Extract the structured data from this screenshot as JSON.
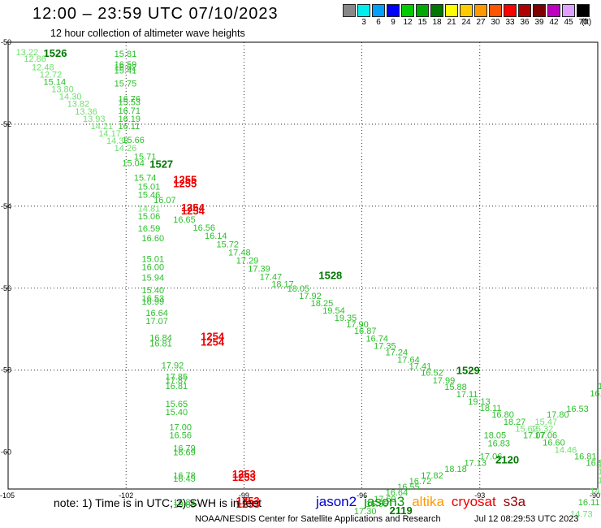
{
  "title": "12:00  –  23:59 UTC 07/10/2023",
  "subtitle": "12 hour collection of altimeter wave heights",
  "legend": {
    "unit": "(ft)",
    "colors": [
      "#888888",
      "#00eeee",
      "#00a0ff",
      "#0000ff",
      "#00cc00",
      "#00aa00",
      "#007700",
      "#ffff00",
      "#ffcc00",
      "#ff9900",
      "#ff5500",
      "#ff0000",
      "#b00000",
      "#800000",
      "#c000c0",
      "#e0a0ff",
      "#000000"
    ],
    "labels": [
      "",
      "3",
      "6",
      "9",
      "12",
      "15",
      "18",
      "21",
      "24",
      "27",
      "30",
      "33",
      "36",
      "39",
      "42",
      "45",
      "70"
    ]
  },
  "axes": {
    "x_ticks": [
      "-105",
      "-102",
      "-99",
      "-96",
      "-93",
      "-90"
    ],
    "y_ticks": [
      "-50",
      "-52",
      "-54",
      "-56",
      "-58",
      "-60"
    ]
  },
  "note": "note:  1) Time is in UTC; 2) SWH is in feet",
  "satellites": [
    {
      "name": "jason2",
      "color": "#0000cc"
    },
    {
      "name": "jason3",
      "color": "#009900"
    },
    {
      "name": "altika",
      "color": "#ff9900"
    },
    {
      "name": "cryosat",
      "color": "#ee0000"
    },
    {
      "name": "s3a",
      "color": "#990000"
    }
  ],
  "credit": "NOAA/NESDIS Center for Satellite Applications and Research",
  "created": "Jul 12 08:29:53 UTC 2023",
  "observations": [
    {
      "text": "13.22",
      "color": "#6fe06f",
      "lon": -104.8,
      "lat": -50.24
    },
    {
      "text": "1526",
      "color": "#007700",
      "lon": -104.1,
      "lat": -50.28,
      "bold": true
    },
    {
      "text": "12.86",
      "color": "#6fe06f",
      "lon": -104.6,
      "lat": -50.4
    },
    {
      "text": "12.48",
      "color": "#6fe06f",
      "lon": -104.4,
      "lat": -50.6
    },
    {
      "text": "12.72",
      "color": "#6fe06f",
      "lon": -104.2,
      "lat": -50.78
    },
    {
      "text": "15.14",
      "color": "#2bbf2b",
      "lon": -104.1,
      "lat": -50.96
    },
    {
      "text": "13.80",
      "color": "#6fe06f",
      "lon": -103.9,
      "lat": -51.14
    },
    {
      "text": "14.30",
      "color": "#6fe06f",
      "lon": -103.7,
      "lat": -51.32
    },
    {
      "text": "13.82",
      "color": "#6fe06f",
      "lon": -103.5,
      "lat": -51.5
    },
    {
      "text": "13.36",
      "color": "#6fe06f",
      "lon": -103.3,
      "lat": -51.68
    },
    {
      "text": "13.93",
      "color": "#6fe06f",
      "lon": -103.1,
      "lat": -51.86
    },
    {
      "text": "14.21",
      "color": "#6fe06f",
      "lon": -102.9,
      "lat": -52.04
    },
    {
      "text": "14.17",
      "color": "#6fe06f",
      "lon": -102.7,
      "lat": -52.22
    },
    {
      "text": "14.39",
      "color": "#6fe06f",
      "lon": -102.5,
      "lat": -52.4
    },
    {
      "text": "14.26",
      "color": "#6fe06f",
      "lon": -102.3,
      "lat": -52.58
    },
    {
      "text": "15.04",
      "color": "#2bbf2b",
      "lon": -102.1,
      "lat": -52.94
    },
    {
      "text": "1527",
      "color": "#007700",
      "lon": -101.4,
      "lat": -52.98,
      "bold": true
    },
    {
      "text": "15.74",
      "color": "#2bbf2b",
      "lon": -101.8,
      "lat": -53.3
    },
    {
      "text": "1255",
      "color": "#ee0000",
      "lon": -100.8,
      "lat": -53.36,
      "bold": true
    },
    {
      "text": "1255",
      "color": "#ee0000",
      "lon": -100.8,
      "lat": -53.46,
      "bold": true
    },
    {
      "text": "15.01",
      "color": "#2bbf2b",
      "lon": -101.7,
      "lat": -53.52
    },
    {
      "text": "15.46",
      "color": "#2bbf2b",
      "lon": -101.7,
      "lat": -53.72
    },
    {
      "text": "16.07",
      "color": "#2bbf2b",
      "lon": -101.3,
      "lat": -53.84
    },
    {
      "text": "14.81",
      "color": "#6fe06f",
      "lon": -101.7,
      "lat": -54.05
    },
    {
      "text": "1254",
      "color": "#ee0000",
      "lon": -100.6,
      "lat": -54.04,
      "bold": true
    },
    {
      "text": "1254",
      "color": "#ee0000",
      "lon": -100.6,
      "lat": -54.12,
      "bold": true
    },
    {
      "text": "15.06",
      "color": "#2bbf2b",
      "lon": -101.7,
      "lat": -54.24
    },
    {
      "text": "16.65",
      "color": "#2bbf2b",
      "lon": -100.8,
      "lat": -54.32
    },
    {
      "text": "16.59",
      "color": "#2bbf2b",
      "lon": -101.7,
      "lat": -54.54
    },
    {
      "text": "16.56",
      "color": "#2bbf2b",
      "lon": -100.3,
      "lat": -54.52
    },
    {
      "text": "16.60",
      "color": "#2bbf2b",
      "lon": -101.6,
      "lat": -54.78
    },
    {
      "text": "16.14",
      "color": "#2bbf2b",
      "lon": -100.0,
      "lat": -54.72
    },
    {
      "text": "15.72",
      "color": "#2bbf2b",
      "lon": -99.7,
      "lat": -54.92
    },
    {
      "text": "17.48",
      "color": "#2bbf2b",
      "lon": -99.4,
      "lat": -55.12
    },
    {
      "text": "15.01",
      "color": "#2bbf2b",
      "lon": -101.6,
      "lat": -55.28
    },
    {
      "text": "17.29",
      "color": "#2bbf2b",
      "lon": -99.2,
      "lat": -55.32
    },
    {
      "text": "16.00",
      "color": "#2bbf2b",
      "lon": -101.6,
      "lat": -55.48
    },
    {
      "text": "17.39",
      "color": "#2bbf2b",
      "lon": -98.9,
      "lat": -55.52
    },
    {
      "text": "1528",
      "color": "#007700",
      "lon": -97.1,
      "lat": -55.7,
      "bold": true
    },
    {
      "text": "17.47",
      "color": "#2bbf2b",
      "lon": -98.6,
      "lat": -55.72
    },
    {
      "text": "15.94",
      "color": "#2bbf2b",
      "lon": -101.6,
      "lat": -55.74
    },
    {
      "text": "18.17",
      "color": "#2bbf2b",
      "lon": -98.3,
      "lat": -55.9
    },
    {
      "text": "15.40",
      "color": "#2bbf2b",
      "lon": -101.6,
      "lat": -56.04
    },
    {
      "text": "18.05",
      "color": "#2bbf2b",
      "lon": -97.9,
      "lat": -56.0
    },
    {
      "text": "16.53",
      "color": "#2bbf2b",
      "lon": -101.6,
      "lat": -56.24
    },
    {
      "text": "17.92",
      "color": "#2bbf2b",
      "lon": -97.6,
      "lat": -56.18
    },
    {
      "text": "16.99",
      "color": "#2bbf2b",
      "lon": -101.6,
      "lat": -56.32
    },
    {
      "text": "18.25",
      "color": "#2bbf2b",
      "lon": -97.3,
      "lat": -56.36
    },
    {
      "text": "19.54",
      "color": "#2bbf2b",
      "lon": -97.0,
      "lat": -56.54
    },
    {
      "text": "16.64",
      "color": "#2bbf2b",
      "lon": -101.5,
      "lat": -56.6
    },
    {
      "text": "19.35",
      "color": "#2bbf2b",
      "lon": -96.7,
      "lat": -56.72
    },
    {
      "text": "17.07",
      "color": "#2bbf2b",
      "lon": -101.5,
      "lat": -56.8
    },
    {
      "text": "17.90",
      "color": "#2bbf2b",
      "lon": -96.4,
      "lat": -56.88
    },
    {
      "text": "16.87",
      "color": "#2bbf2b",
      "lon": -96.2,
      "lat": -57.04
    },
    {
      "text": "16.84",
      "color": "#2bbf2b",
      "lon": -101.4,
      "lat": -57.2
    },
    {
      "text": "1254",
      "color": "#ee0000",
      "lon": -100.1,
      "lat": -57.18,
      "bold": true
    },
    {
      "text": "16.74",
      "color": "#2bbf2b",
      "lon": -95.9,
      "lat": -57.22
    },
    {
      "text": "16.81",
      "color": "#2bbf2b",
      "lon": -101.4,
      "lat": -57.34
    },
    {
      "text": "1254",
      "color": "#ee0000",
      "lon": -100.1,
      "lat": -57.32,
      "bold": true
    },
    {
      "text": "17.35",
      "color": "#2bbf2b",
      "lon": -95.7,
      "lat": -57.4
    },
    {
      "text": "17.24",
      "color": "#2bbf2b",
      "lon": -95.4,
      "lat": -57.56
    },
    {
      "text": "17.64",
      "color": "#2bbf2b",
      "lon": -95.1,
      "lat": -57.74
    },
    {
      "text": "17.92",
      "color": "#2bbf2b",
      "lon": -101.1,
      "lat": -57.88
    },
    {
      "text": "17.41",
      "color": "#2bbf2b",
      "lon": -94.8,
      "lat": -57.9
    },
    {
      "text": "1529",
      "color": "#007700",
      "lon": -93.6,
      "lat": -58.02,
      "bold": true
    },
    {
      "text": "16.52",
      "color": "#2bbf2b",
      "lon": -94.5,
      "lat": -58.06
    },
    {
      "text": "17.85",
      "color": "#2bbf2b",
      "lon": -101.0,
      "lat": -58.16
    },
    {
      "text": "17.99",
      "color": "#2bbf2b",
      "lon": -94.2,
      "lat": -58.24
    },
    {
      "text": "17.87",
      "color": "#2bbf2b",
      "lon": -101.0,
      "lat": -58.24
    },
    {
      "text": "16.81",
      "color": "#2bbf2b",
      "lon": -101.0,
      "lat": -58.38
    },
    {
      "text": "15.88",
      "color": "#2bbf2b",
      "lon": -93.9,
      "lat": -58.4
    },
    {
      "text": "17.11",
      "color": "#2bbf2b",
      "lon": -93.6,
      "lat": -58.58
    },
    {
      "text": "17.",
      "color": "#2bbf2b",
      "lon": -90.0,
      "lat": -58.38
    },
    {
      "text": "16.73",
      "color": "#2bbf2b",
      "lon": -90.2,
      "lat": -58.56
    },
    {
      "text": "19.13",
      "color": "#2bbf2b",
      "lon": -93.3,
      "lat": -58.76
    },
    {
      "text": "15.65",
      "color": "#2bbf2b",
      "lon": -101.0,
      "lat": -58.82
    },
    {
      "text": "18.11",
      "color": "#2bbf2b",
      "lon": -93.0,
      "lat": -58.92
    },
    {
      "text": "16.53",
      "color": "#2bbf2b",
      "lon": -90.8,
      "lat": -58.94
    },
    {
      "text": "15.40",
      "color": "#2bbf2b",
      "lon": -101.0,
      "lat": -59.02
    },
    {
      "text": "16.80",
      "color": "#2bbf2b",
      "lon": -92.7,
      "lat": -59.08
    },
    {
      "text": "17.80",
      "color": "#2bbf2b",
      "lon": -91.3,
      "lat": -59.08
    },
    {
      "text": "18.27",
      "color": "#2bbf2b",
      "lon": -92.4,
      "lat": -59.26
    },
    {
      "text": "15.47",
      "color": "#6fe06f",
      "lon": -91.6,
      "lat": -59.26
    },
    {
      "text": "17.00",
      "color": "#2bbf2b",
      "lon": -100.9,
      "lat": -59.38
    },
    {
      "text": "15.62",
      "color": "#6fe06f",
      "lon": -92.1,
      "lat": -59.42
    },
    {
      "text": "16.32",
      "color": "#6fe06f",
      "lon": -91.7,
      "lat": -59.42
    },
    {
      "text": "18.05",
      "color": "#2bbf2b",
      "lon": -92.9,
      "lat": -59.58
    },
    {
      "text": "17.07",
      "color": "#2bbf2b",
      "lon": -91.9,
      "lat": -59.58
    },
    {
      "text": "17.06",
      "color": "#2bbf2b",
      "lon": -91.6,
      "lat": -59.58
    },
    {
      "text": "16.56",
      "color": "#2bbf2b",
      "lon": -100.9,
      "lat": -59.58
    },
    {
      "text": "16.60",
      "color": "#2bbf2b",
      "lon": -91.4,
      "lat": -59.76
    },
    {
      "text": "16.83",
      "color": "#2bbf2b",
      "lon": -92.8,
      "lat": -59.78
    },
    {
      "text": "16.79",
      "color": "#2bbf2b",
      "lon": -100.8,
      "lat": -59.9
    },
    {
      "text": "14.46",
      "color": "#6fe06f",
      "lon": -91.1,
      "lat": -59.94
    },
    {
      "text": "16.69",
      "color": "#2bbf2b",
      "lon": -100.8,
      "lat": -60.0
    },
    {
      "text": "17.06",
      "color": "#2bbf2b",
      "lon": -93.0,
      "lat": -60.1
    },
    {
      "text": "16.81",
      "color": "#2bbf2b",
      "lon": -90.6,
      "lat": -60.1
    },
    {
      "text": "2120",
      "color": "#007700",
      "lon": -92.6,
      "lat": -60.2,
      "bold": true
    },
    {
      "text": "17.13",
      "color": "#2bbf2b",
      "lon": -93.4,
      "lat": -60.26
    },
    {
      "text": "16.57",
      "color": "#2bbf2b",
      "lon": -90.3,
      "lat": -60.26
    },
    {
      "text": "18.18",
      "color": "#2bbf2b",
      "lon": -93.9,
      "lat": -60.4
    },
    {
      "text": "1",
      "color": "#6fe06f",
      "lon": -90.0,
      "lat": -60.3
    },
    {
      "text": "14.",
      "color": "#6fe06f",
      "lon": -90.0,
      "lat": -60.46
    },
    {
      "text": "17.82",
      "color": "#2bbf2b",
      "lon": -94.5,
      "lat": -60.56
    },
    {
      "text": "16.78",
      "color": "#2bbf2b",
      "lon": -100.8,
      "lat": -60.56
    },
    {
      "text": "1253",
      "color": "#ee0000",
      "lon": -99.3,
      "lat": -60.54,
      "bold": true
    },
    {
      "text": "16.72",
      "color": "#2bbf2b",
      "lon": -94.8,
      "lat": -60.7
    },
    {
      "text": "16.45",
      "color": "#2bbf2b",
      "lon": -100.8,
      "lat": -60.64
    },
    {
      "text": "1253",
      "color": "#ee0000",
      "lon": -99.3,
      "lat": -60.62,
      "bold": true
    },
    {
      "text": "13.8",
      "color": "#6fe06f",
      "lon": -90.0,
      "lat": -60.68
    },
    {
      "text": "16.55",
      "color": "#2bbf2b",
      "lon": -95.1,
      "lat": -60.84
    },
    {
      "text": "14.27",
      "color": "#6fe06f",
      "lon": -90.2,
      "lat": -60.94
    },
    {
      "text": "16.64",
      "color": "#2bbf2b",
      "lon": -95.4,
      "lat": -60.98
    },
    {
      "text": "17.69",
      "color": "#2bbf2b",
      "lon": -95.7,
      "lat": -61.14
    },
    {
      "text": "16.81",
      "color": "#2bbf2b",
      "lon": -100.8,
      "lat": -61.22
    },
    {
      "text": "1253",
      "color": "#ee0000",
      "lon": -99.2,
      "lat": -61.2,
      "bold": true
    },
    {
      "text": "16.11",
      "color": "#2bbf2b",
      "lon": -90.5,
      "lat": -61.22
    },
    {
      "text": "16.55",
      "color": "#2bbf2b",
      "lon": -95.9,
      "lat": -61.26
    },
    {
      "text": "16.85",
      "color": "#2bbf2b",
      "lon": -100.8,
      "lat": -61.28
    },
    {
      "text": "1253",
      "color": "#ee0000",
      "lon": -99.2,
      "lat": -61.28,
      "bold": true
    },
    {
      "text": "17.30",
      "color": "#2bbf2b",
      "lon": -96.2,
      "lat": -61.44
    },
    {
      "text": "2119",
      "color": "#007700",
      "lon": -95.3,
      "lat": -61.44,
      "bold": true
    },
    {
      "text": "14.73",
      "color": "#6fe06f",
      "lon": -90.7,
      "lat": -61.5
    },
    {
      "text": "15.81",
      "color": "#2bbf2b",
      "lon": -102.3,
      "lat": -50.28
    },
    {
      "text": "16.59",
      "color": "#2bbf2b",
      "lon": -102.3,
      "lat": -50.54
    },
    {
      "text": "16.62",
      "color": "#2bbf2b",
      "lon": -102.3,
      "lat": -50.6
    },
    {
      "text": "15.41",
      "color": "#2bbf2b",
      "lon": -102.3,
      "lat": -50.68
    },
    {
      "text": "15.75",
      "color": "#2bbf2b",
      "lon": -102.3,
      "lat": -51.0
    },
    {
      "text": "16.76",
      "color": "#2bbf2b",
      "lon": -102.2,
      "lat": -51.38
    },
    {
      "text": "15.53",
      "color": "#2bbf2b",
      "lon": -102.2,
      "lat": -51.46
    },
    {
      "text": "16.71",
      "color": "#2bbf2b",
      "lon": -102.2,
      "lat": -51.66
    },
    {
      "text": "16.19",
      "color": "#2bbf2b",
      "lon": -102.2,
      "lat": -51.86
    },
    {
      "text": "16.11",
      "color": "#2bbf2b",
      "lon": -102.2,
      "lat": -52.04
    },
    {
      "text": "15.66",
      "color": "#2bbf2b",
      "lon": -102.1,
      "lat": -52.38
    },
    {
      "text": "15.71",
      "color": "#2bbf2b",
      "lon": -101.8,
      "lat": -52.78
    }
  ]
}
